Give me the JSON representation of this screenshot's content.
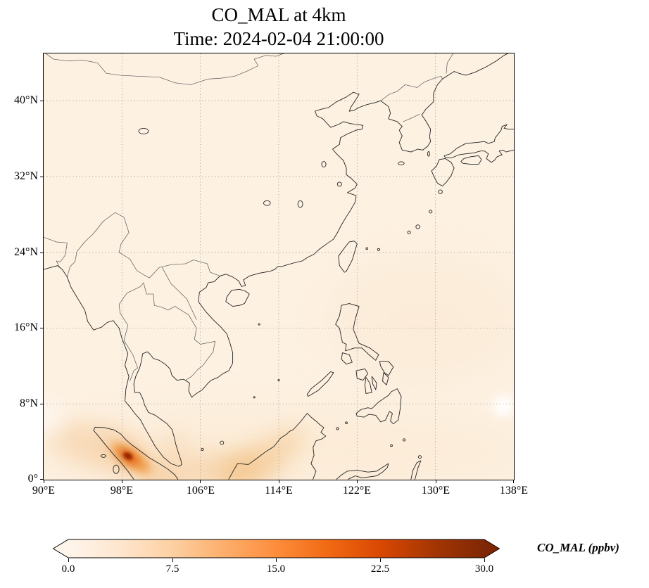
{
  "title": {
    "line1": "CO_MAL at 4km",
    "line2": "Time: 2024-02-04 21:00:00"
  },
  "axes": {
    "x_tick_labels": [
      "90°E",
      "98°E",
      "106°E",
      "114°E",
      "122°E",
      "130°E",
      "138°E"
    ],
    "y_tick_labels": [
      "40°N",
      "32°N",
      "24°N",
      "16°N",
      "8°N",
      "0°"
    ]
  },
  "colorbar": {
    "label": "CO_MAL (ppbv)",
    "tick_labels": [
      "0.0",
      "7.5",
      "15.0",
      "22.5",
      "30.0"
    ],
    "vmin": 0.0,
    "vmax": 30.0,
    "extend": "both",
    "colormap": "Oranges",
    "gradient_stops": [
      "#fff5eb",
      "#fee6ce",
      "#fdd0a2",
      "#fdae6b",
      "#fd8d3c",
      "#f16913",
      "#d94801",
      "#a63603",
      "#7f2704"
    ]
  },
  "chart_data": {
    "type": "heatmap",
    "title": "CO_MAL at 4km",
    "subtitle": "Time: 2024-02-04 21:00:00",
    "variable": "CO_MAL",
    "units": "ppbv",
    "level": "4km",
    "time": "2024-02-04 21:00:00",
    "x": {
      "label": "longitude",
      "range_deg_east": [
        90,
        138
      ],
      "ticks": [
        90,
        98,
        106,
        114,
        122,
        130,
        138
      ]
    },
    "y": {
      "label": "latitude",
      "range_deg_north": [
        0,
        45
      ],
      "ticks": [
        0,
        8,
        16,
        24,
        32,
        40
      ]
    },
    "color_scale": {
      "colormap": "Oranges",
      "vmin": 0.0,
      "vmax": 30.0,
      "ticks": [
        0.0,
        7.5,
        15.0,
        22.5,
        30.0
      ],
      "extend": "both"
    },
    "grid": "dotted gray graticule every 8 degrees",
    "basemap": "coastlines and country borders of East and Southeast Asia",
    "field_summary": [
      {
        "region": "northern Sumatra near 98.5E, 2.5N",
        "value_ppbv": 30,
        "note": "dark-red saturated maximum"
      },
      {
        "region": "plume along Sumatra axis and WNW fan toward 90-96E, 2-5N",
        "value_ppbv": "4-15"
      },
      {
        "region": "plume E along equator toward Borneo 104-117E, 0-5N",
        "value_ppbv": "2-8"
      },
      {
        "region": "faint enhancement east of Philippines ~125-135E, 12-22N",
        "value_ppbv": "1-2"
      },
      {
        "region": "rest of domain",
        "value_ppbv": "0-1",
        "note": "pale cream background"
      }
    ]
  }
}
